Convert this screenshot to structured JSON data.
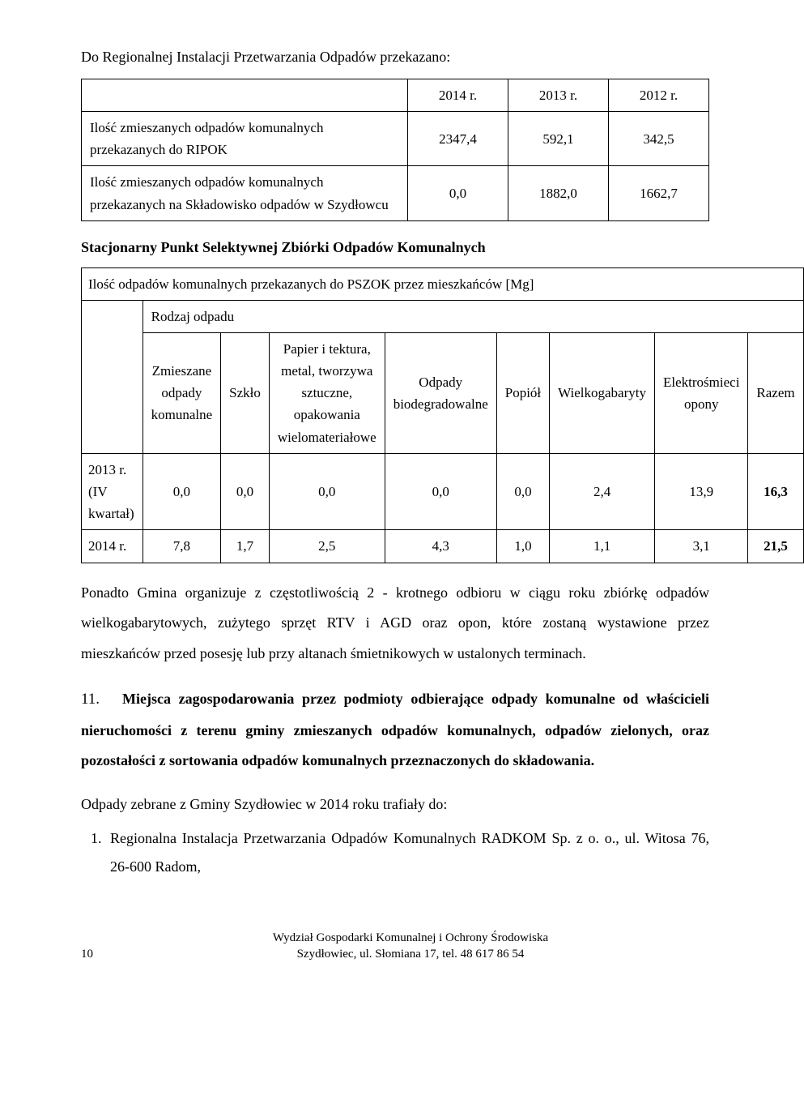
{
  "intro": "Do Regionalnej Instalacji Przetwarzania Odpadów przekazano:",
  "table1": {
    "headers": [
      "2014 r.",
      "2013 r.",
      "2012 r."
    ],
    "rows": [
      {
        "label": "Ilość zmieszanych odpadów komunalnych przekazanych do RIPOK",
        "vals": [
          "2347,4",
          "592,1",
          "342,5"
        ]
      },
      {
        "label": "Ilość zmieszanych odpadów komunalnych przekazanych na Składowisko odpadów w Szydłowcu",
        "vals": [
          "0,0",
          "1882,0",
          "1662,7"
        ]
      }
    ]
  },
  "psz_title": "Stacjonarny Punkt Selektywnej Zbiórki Odpadów Komunalnych",
  "table2": {
    "caption": "Ilość odpadów komunalnych przekazanych do PSZOK przez mieszkańców [Mg]",
    "rodzaj": "Rodzaj odpadu",
    "cols": [
      "Zmieszane odpady komunalne",
      "Szkło",
      "Papier i tektura, metal, tworzywa sztuczne, opakowania wielomateriałowe",
      "Odpady biodegradowalne",
      "Popiół",
      "Wielkogabaryty",
      "Elektrośmieci opony",
      "Razem"
    ],
    "rows": [
      {
        "label": "2013 r. (IV kwartał)",
        "vals": [
          "0,0",
          "0,0",
          "0,0",
          "0,0",
          "0,0",
          "2,4",
          "13,9",
          "16,3"
        ]
      },
      {
        "label": "2014 r.",
        "vals": [
          "7,8",
          "1,7",
          "2,5",
          "4,3",
          "1,0",
          "1,1",
          "3,1",
          "21,5"
        ]
      }
    ]
  },
  "body_para": "Ponadto Gmina organizuje z częstotliwością 2 - krotnego odbioru w ciągu roku zbiórkę odpadów wielkogabarytowych, zużytego sprzęt RTV i AGD oraz opon, które zostaną wystawione przez mieszkańców przed posesję lub przy altanach śmietnikowych w ustalonych terminach.",
  "section11": {
    "num": "11.",
    "text": "Miejsca zagospodarowania przez podmioty odbierające odpady komunalne od właścicieli nieruchomości z terenu gminy zmieszanych odpadów komunalnych, odpadów zielonych, oraz pozostałości z sortowania odpadów komunalnych przeznaczonych do składowania."
  },
  "sub_para": "Odpady zebrane z Gminy Szydłowiec w 2014 roku trafiały do:",
  "list": [
    "Regionalna Instalacja Przetwarzania Odpadów Komunalnych RADKOM Sp. z o. o., ul. Witosa 76, 26-600 Radom,"
  ],
  "footer": {
    "page": "10",
    "line1": "Wydział Gospodarki Komunalnej i Ochrony Środowiska",
    "line2": "Szydłowiec, ul. Słomiana 17, tel. 48 617 86 54"
  },
  "colors": {
    "text": "#000000",
    "background": "#ffffff",
    "border": "#000000"
  }
}
